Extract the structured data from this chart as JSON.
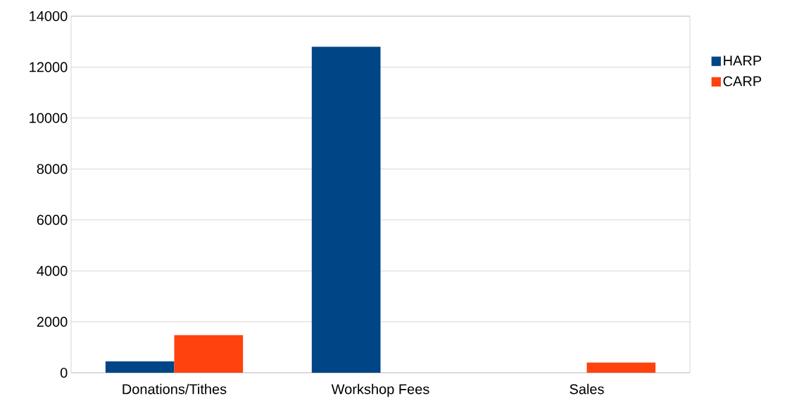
{
  "chart_data": {
    "type": "bar",
    "categories": [
      "Donations/Tithes",
      "Workshop Fees",
      "Sales"
    ],
    "series": [
      {
        "name": "HARP",
        "color": "#004586",
        "values": [
          450,
          12800,
          0
        ]
      },
      {
        "name": "CARP",
        "color": "#ff420e",
        "values": [
          1480,
          0,
          400
        ]
      }
    ],
    "ylim": [
      0,
      14000
    ],
    "yticks": [
      0,
      2000,
      4000,
      6000,
      8000,
      10000,
      12000,
      14000
    ],
    "grid": "y",
    "legend": "right"
  }
}
